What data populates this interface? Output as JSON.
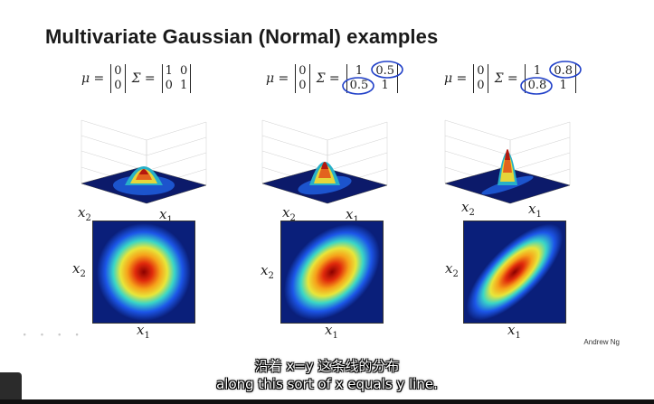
{
  "slide": {
    "title": "Multivariate Gaussian (Normal) examples",
    "author": "Andrew Ng",
    "faint_marks": "∙ ∙ ∙ ∙"
  },
  "formulas": [
    {
      "mu_label": "μ =",
      "mu": [
        "0",
        "0"
      ],
      "sigma_label": "Σ =",
      "sigma": [
        "1",
        "0",
        "0",
        "1"
      ],
      "circled": false
    },
    {
      "mu_label": "μ =",
      "mu": [
        "0",
        "0"
      ],
      "sigma_label": "Σ =",
      "sigma": [
        "1",
        "0.5",
        "0.5",
        "1"
      ],
      "circled": true
    },
    {
      "mu_label": "μ =",
      "mu": [
        "0",
        "0"
      ],
      "sigma_label": "Σ =",
      "sigma": [
        "1",
        "0.8",
        "0.8",
        "1"
      ],
      "circled": true
    }
  ],
  "axis_labels": {
    "x1": "x",
    "x1_sub": "1",
    "x2": "x",
    "x2_sub": "2"
  },
  "ticks_z": [
    "0.4",
    "0.3",
    "0.2",
    "0.1",
    "0"
  ],
  "subtitles": {
    "chinese": "沿着 x=y 这条线的分布",
    "english": "along this sort of x equals y line."
  },
  "colors": {
    "annotation_ink": "#2040c8",
    "heat_low": "#0a1f7a",
    "heat_high": "#8b0000"
  },
  "correlations": [
    0,
    0.5,
    0.8
  ]
}
